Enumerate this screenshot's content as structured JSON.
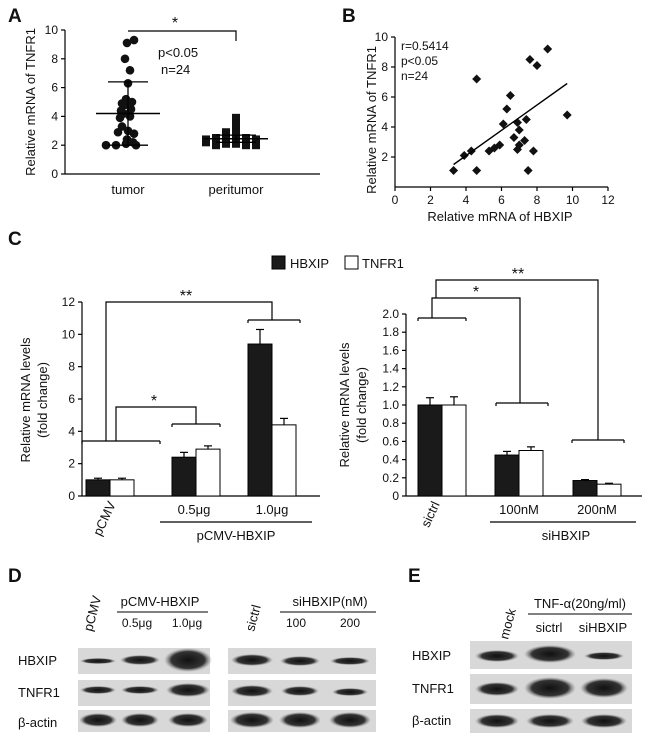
{
  "panels": {
    "A": "A",
    "B": "B",
    "C": "C",
    "D": "D",
    "E": "E"
  },
  "chart_data": [
    {
      "id": "A",
      "type": "scatter",
      "ylabel": "Relative mRNA of TNFR1",
      "categories": [
        "tumor",
        "peritumor"
      ],
      "yticks": [
        "0",
        "2",
        "4",
        "6",
        "8",
        "10"
      ],
      "ylim": [
        0,
        10
      ],
      "annotations": {
        "star": "*",
        "p": "p<0.05",
        "n": "n=24"
      },
      "series": [
        {
          "marker": "circle",
          "values": [
            9.3,
            9.1,
            8.0,
            7.2,
            6.3,
            5.0,
            5.2,
            4.9,
            4.8,
            4.5,
            4.4,
            4.2,
            4.0,
            3.9,
            3.3,
            3.0,
            2.9,
            2.8,
            2.4,
            2.2,
            2.1,
            2.0,
            2.0,
            2.0
          ],
          "mean": 4.2,
          "sd_upper": 6.4,
          "sd_lower": 2.0
        },
        {
          "marker": "square",
          "values": [
            3.9,
            3.5,
            3.3,
            3.0,
            2.9,
            2.8,
            2.7,
            2.6,
            2.6,
            2.5,
            2.5,
            2.4,
            2.4,
            2.3,
            2.3,
            2.3,
            2.2,
            2.2,
            2.2,
            2.1,
            2.1,
            2.0,
            2.0,
            2.0
          ],
          "mean": 2.45,
          "sd_upper": 2.7,
          "sd_lower": 2.2
        }
      ]
    },
    {
      "id": "B",
      "type": "scatter",
      "xlabel": "Relative mRNA of HBXIP",
      "ylabel": "Relative mRNA of TNFR1",
      "xticks": [
        "0",
        "2",
        "4",
        "6",
        "8",
        "10",
        "12"
      ],
      "yticks": [
        "2",
        "4",
        "6",
        "8",
        "10"
      ],
      "xlim": [
        0,
        12
      ],
      "ylim": [
        0,
        10
      ],
      "annotations": {
        "r": "r=0.5414",
        "p": "p<0.05",
        "n": "n=24"
      },
      "points": [
        [
          3.3,
          1.1
        ],
        [
          3.9,
          2.1
        ],
        [
          4.3,
          2.4
        ],
        [
          4.6,
          1.1
        ],
        [
          4.6,
          7.2
        ],
        [
          5.3,
          2.4
        ],
        [
          5.6,
          2.6
        ],
        [
          5.9,
          2.8
        ],
        [
          6.1,
          4.2
        ],
        [
          6.3,
          5.2
        ],
        [
          6.5,
          6.1
        ],
        [
          6.7,
          3.3
        ],
        [
          6.9,
          4.3
        ],
        [
          7.0,
          3.8
        ],
        [
          6.9,
          2.5
        ],
        [
          7.0,
          2.8
        ],
        [
          7.3,
          3.1
        ],
        [
          7.4,
          4.5
        ],
        [
          7.5,
          1.1
        ],
        [
          7.6,
          8.5
        ],
        [
          7.8,
          2.4
        ],
        [
          8.0,
          8.1
        ],
        [
          8.6,
          9.2
        ],
        [
          9.7,
          4.8
        ]
      ],
      "fit": [
        [
          3.3,
          1.5
        ],
        [
          9.7,
          6.9
        ]
      ]
    },
    {
      "id": "C1",
      "type": "bar",
      "ylabel": "Relative mRNA levels (fold change)",
      "ylabel_lines": [
        "Relative mRNA levels",
        "(fold change)"
      ],
      "categories": [
        "pCMV",
        "0.5μg",
        "1.0μg"
      ],
      "group_label": "pCMV-HBXIP",
      "yticks": [
        "0",
        "2",
        "4",
        "6",
        "8",
        "10",
        "12"
      ],
      "ylim": [
        0,
        12
      ],
      "series": [
        {
          "name": "HBXIP",
          "values": [
            1.0,
            2.4,
            9.4
          ],
          "err": [
            0.1,
            0.3,
            0.9
          ]
        },
        {
          "name": "TNFR1",
          "values": [
            1.0,
            2.9,
            4.4
          ],
          "err": [
            0.1,
            0.2,
            0.4
          ]
        }
      ],
      "stars": [
        "*",
        "**"
      ]
    },
    {
      "id": "C2",
      "type": "bar",
      "ylabel": "Relative mRNA levels (fold change)",
      "ylabel_lines": [
        "Relative mRNA levels",
        "(fold change)"
      ],
      "categories": [
        "sictrl",
        "100nM",
        "200nM"
      ],
      "group_label": "siHBXIP",
      "yticks": [
        "0",
        "0.2",
        "0.4",
        "0.6",
        "0.8",
        "1.0",
        "1.2",
        "1.4",
        "1.6",
        "1.8",
        "2.0"
      ],
      "ylim": [
        0,
        2.0
      ],
      "series": [
        {
          "name": "HBXIP",
          "values": [
            1.0,
            0.45,
            0.17
          ],
          "err": [
            0.08,
            0.04,
            0.01
          ]
        },
        {
          "name": "TNFR1",
          "values": [
            1.0,
            0.5,
            0.13
          ],
          "err": [
            0.09,
            0.04,
            0.01
          ]
        }
      ],
      "stars": [
        "*",
        "**"
      ]
    }
  ],
  "legend": {
    "hbxip": "HBXIP",
    "tnfr1": "TNFR1"
  },
  "blotD": {
    "col_pcmv": "pCMV",
    "col_group": "pCMV-HBXIP",
    "col_05": "0.5μg",
    "col_10": "1.0μg",
    "col_sictrl": "sictrl",
    "col_group2": "siHBXIP(nM)",
    "col_100": "100",
    "col_200": "200",
    "row1": "HBXIP",
    "row2": "TNFR1",
    "row3": "β-actin"
  },
  "blotE": {
    "col_mock": "mock",
    "col_group": "TNF-α(20ng/ml)",
    "col_sictrl": "sictrl",
    "col_si": "siHBXIP",
    "row1": "HBXIP",
    "row2": "TNFR1",
    "row3": "β-actin"
  }
}
